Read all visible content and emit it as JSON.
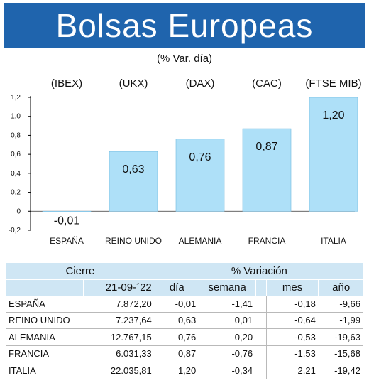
{
  "header": {
    "title": "Bolsas Europeas",
    "subtitle": "(% Var. día)"
  },
  "chart_data": {
    "type": "bar",
    "categories": [
      "ESPAÑA",
      "REINO UNIDO",
      "ALEMANIA",
      "FRANCIA",
      "ITALIA"
    ],
    "indices": [
      "(IBEX)",
      "(UKX)",
      "(DAX)",
      "(CAC)",
      "(FTSE MIB)"
    ],
    "values": [
      -0.01,
      0.63,
      0.76,
      0.87,
      1.2
    ],
    "value_labels": [
      "-0,01",
      "0,63",
      "0,76",
      "0,87",
      "1,20"
    ],
    "yticks": [
      -0.2,
      0,
      0.2,
      0.4,
      0.6,
      0.8,
      1.0,
      1.2
    ],
    "ytick_labels": [
      "-0,2",
      "0",
      "0,2",
      "0,4",
      "0,6",
      "0,8",
      "1,0",
      "1,2"
    ],
    "ylim": [
      -0.2,
      1.2
    ],
    "bar_color": "#aee0f8",
    "grid": false
  },
  "table": {
    "header_cierre": "Cierre",
    "header_variacion": "% Variación",
    "date": "21-09-´22",
    "col_dia": "día",
    "col_semana": "semana",
    "col_mes": "mes",
    "col_ano": "año",
    "rows": [
      {
        "name": "ESPAÑA",
        "cierre": "7.872,20",
        "dia": "-0,01",
        "semana": "-1,41",
        "mes": "-0,18",
        "ano": "-9,66"
      },
      {
        "name": "REINO UNIDO",
        "cierre": "7.237,64",
        "dia": "0,63",
        "semana": "0,01",
        "mes": "-0,64",
        "ano": "-1,99"
      },
      {
        "name": "ALEMANIA",
        "cierre": "12.767,15",
        "dia": "0,76",
        "semana": "0,20",
        "mes": "-0,53",
        "ano": "-19,63"
      },
      {
        "name": "FRANCIA",
        "cierre": "6.031,33",
        "dia": "0,87",
        "semana": "-0,76",
        "mes": "-1,53",
        "ano": "-15,68"
      },
      {
        "name": "ITALIA",
        "cierre": "22.035,81",
        "dia": "1,20",
        "semana": "-0,34",
        "mes": "2,21",
        "ano": "-19,42"
      }
    ]
  }
}
